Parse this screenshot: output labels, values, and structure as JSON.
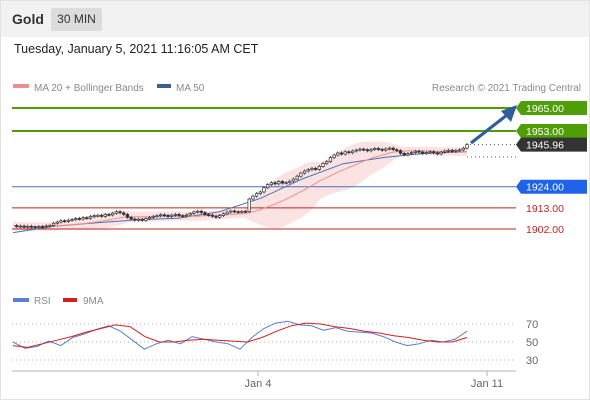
{
  "header": {
    "title": "Gold",
    "timeframe": "30 MIN",
    "datetime": "Tuesday, January 5, 2021 11:16:05 AM CET"
  },
  "legend": {
    "ma20_label": "MA 20 + Bollinger Bands",
    "ma50_label": "MA 50",
    "source": "Research © 2021 Trading Central"
  },
  "rsi_legend": {
    "rsi_label": "RSI",
    "ma_label": "9MA"
  },
  "colors": {
    "green": "#4f9e07",
    "blue": "#4672b6",
    "red": "#c0261f",
    "price_tag": "#333333",
    "ma20": "#ef8e8e",
    "band_fill": "#fbe3e3",
    "arrow": "#2f5f9a"
  },
  "chart_data": {
    "type": "candlestick",
    "x_tick_labels": [
      "Jan 4",
      "Jan 11"
    ],
    "price_ylim": [
      1894,
      1972
    ],
    "current_price": "1945.96",
    "levels": [
      {
        "value": "1965.00",
        "kind": "target",
        "color": "#4f9e07"
      },
      {
        "value": "1953.00",
        "kind": "target",
        "color": "#4f9e07"
      },
      {
        "value": "1924.00",
        "kind": "pivot",
        "color": "#4672b6"
      },
      {
        "value": "1913.00",
        "kind": "support",
        "color": "#c0261f"
      },
      {
        "value": "1902.00",
        "kind": "support",
        "color": "#c0261f"
      }
    ],
    "price_series": [
      1903.8,
      1903.2,
      1903.5,
      1902.9,
      1903.4,
      1903.1,
      1903.0,
      1903.3,
      1903.2,
      1903.6,
      1903.9,
      1905.0,
      1905.6,
      1906.3,
      1906.0,
      1906.6,
      1906.9,
      1907.5,
      1907.2,
      1907.9,
      1907.6,
      1908.5,
      1908.9,
      1909.1,
      1908.6,
      1909.6,
      1909.3,
      1910.2,
      1911.0,
      1910.4,
      1909.6,
      1908.1,
      1907.2,
      1906.6,
      1907.1,
      1906.5,
      1907.4,
      1908.0,
      1908.6,
      1908.9,
      1909.4,
      1909.1,
      1908.5,
      1909.2,
      1909.6,
      1909.0,
      1908.8,
      1909.3,
      1910.1,
      1910.9,
      1911.3,
      1910.6,
      1909.5,
      1909.2,
      1908.6,
      1908.1,
      1909.0,
      1909.9,
      1910.8,
      1911.4,
      1911.0,
      1910.9,
      1911.2,
      1911.1,
      1917.6,
      1919.1,
      1920.4,
      1921.3,
      1923.5,
      1925.1,
      1926.1,
      1925.5,
      1926.7,
      1925.9,
      1926.2,
      1926.9,
      1928.0,
      1929.5,
      1931.1,
      1932.2,
      1932.9,
      1933.6,
      1933.0,
      1934.6,
      1936.1,
      1937.1,
      1939.2,
      1940.5,
      1941.6,
      1941.0,
      1942.2,
      1941.7,
      1942.6,
      1943.1,
      1943.6,
      1943.3,
      1942.7,
      1943.4,
      1943.9,
      1943.5,
      1943.0,
      1943.7,
      1944.1,
      1943.3,
      1942.8,
      1941.4,
      1940.6,
      1941.3,
      1941.8,
      1942.5,
      1942.1,
      1941.4,
      1941.8,
      1942.2,
      1941.6,
      1941.1,
      1942.0,
      1942.6,
      1943.0,
      1942.4,
      1942.9,
      1943.2,
      1944.1,
      1945.96
    ],
    "ma50": [
      1900.1,
      1903.4,
      1905.2,
      1906.8,
      1907.6,
      1911.0,
      1918.0,
      1928.0,
      1936.0,
      1939.3,
      1941.4,
      1942.2
    ],
    "rsi": {
      "levels": [
        70,
        50,
        30
      ],
      "ylim": [
        20,
        80
      ],
      "rsi_values": [
        50,
        43,
        45,
        51,
        46,
        55,
        59,
        64,
        68,
        62,
        52,
        42,
        48,
        52,
        48,
        56,
        53,
        50,
        48,
        42,
        55,
        65,
        71,
        73,
        69,
        68,
        63,
        66,
        62,
        61,
        60,
        56,
        50,
        46,
        48,
        52,
        50,
        53,
        62
      ],
      "ma_values": [
        46,
        44,
        48,
        52,
        56,
        61,
        65,
        69,
        67,
        56,
        50,
        50,
        52,
        53,
        52,
        51,
        50,
        55,
        62,
        68,
        71,
        70,
        67,
        65,
        62,
        60,
        57,
        55,
        52,
        50,
        50,
        55
      ]
    }
  }
}
